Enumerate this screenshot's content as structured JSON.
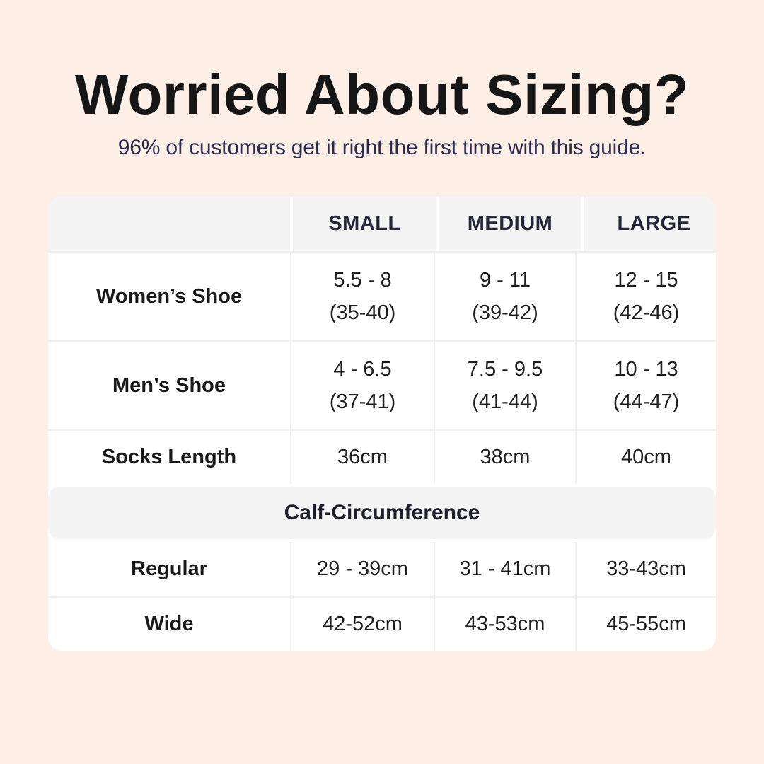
{
  "page": {
    "background_color": "#fdefe6",
    "title": "Worried About Sizing?",
    "subtitle": "96% of customers get it right the first time with this guide.",
    "title_color": "#161616",
    "subtitle_color": "#2b2b4e"
  },
  "table": {
    "card_color": "#ffffff",
    "header_bg_color": "#f4f4f5",
    "columns": [
      "",
      "SMALL",
      "MEDIUM",
      "LARGE"
    ],
    "rows": [
      {
        "label": "Women’s Shoe",
        "values": [
          "5.5 - 8\n(35-40)",
          "9 - 11\n(39-42)",
          "12 - 15\n(42-46)"
        ]
      },
      {
        "label": "Men’s Shoe",
        "values": [
          "4 - 6.5\n(37-41)",
          "7.5 - 9.5\n(41-44)",
          "10 - 13\n(44-47)"
        ]
      },
      {
        "label": "Socks Length",
        "values": [
          "36cm",
          "38cm",
          "40cm"
        ]
      }
    ],
    "section_header": "Calf-Circumference",
    "section_rows": [
      {
        "label": "Regular",
        "values": [
          "29 - 39cm",
          "31 - 41cm",
          "33-43cm"
        ]
      },
      {
        "label": "Wide",
        "values": [
          "42-52cm",
          "43-53cm",
          "45-55cm"
        ]
      }
    ]
  },
  "chart_data": {
    "type": "table",
    "title": "Worried About Sizing?",
    "subtitle": "96% of customers get it right the first time with this guide.",
    "columns": [
      "",
      "SMALL",
      "MEDIUM",
      "LARGE"
    ],
    "rows": [
      [
        "Women’s Shoe",
        "5.5 - 8 (35-40)",
        "9 - 11 (39-42)",
        "12 - 15 (42-46)"
      ],
      [
        "Men’s Shoe",
        "4 - 6.5 (37-41)",
        "7.5 - 9.5 (41-44)",
        "10 - 13 (44-47)"
      ],
      [
        "Socks Length",
        "36cm",
        "38cm",
        "40cm"
      ],
      [
        "Calf-Circumference (section header spanning all columns)"
      ],
      [
        "Regular",
        "29 - 39cm",
        "31 - 41cm",
        "33-43cm"
      ],
      [
        "Wide",
        "42-52cm",
        "43-53cm",
        "45-55cm"
      ]
    ],
    "layout": "section band 'Calf-Circumference' separates shoe/sock rows from calf rows; header row gray, body white, rounded card on peach background"
  }
}
